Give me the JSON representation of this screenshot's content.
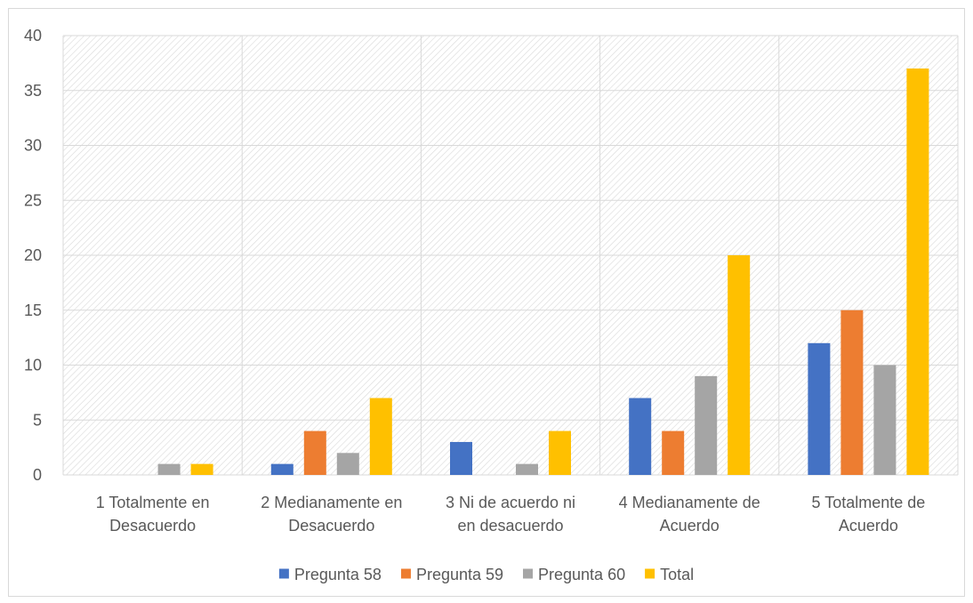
{
  "chart_data": {
    "type": "bar",
    "categories": [
      [
        "1 Totalmente en",
        "Desacuerdo"
      ],
      [
        "2 Medianamente en",
        "Desacuerdo"
      ],
      [
        "3 Ni de acuerdo ni",
        "en desacuerdo"
      ],
      [
        "4 Medianamente de",
        "Acuerdo"
      ],
      [
        "5 Totalmente de",
        "Acuerdo"
      ]
    ],
    "series": [
      {
        "name": "Pregunta 58",
        "color": "#4472c4",
        "values": [
          0,
          1,
          3,
          7,
          12
        ]
      },
      {
        "name": "Pregunta 59",
        "color": "#ed7d31",
        "values": [
          0,
          4,
          0,
          4,
          15
        ]
      },
      {
        "name": "Pregunta 60",
        "color": "#a5a5a5",
        "values": [
          1,
          2,
          1,
          9,
          10
        ]
      },
      {
        "name": "Total",
        "color": "#ffc000",
        "values": [
          1,
          7,
          4,
          20,
          37
        ]
      }
    ],
    "ylim": [
      0,
      40
    ],
    "yticks": [
      "0",
      "5",
      "10",
      "15",
      "20",
      "25",
      "30",
      "35",
      "40"
    ],
    "grid": true,
    "plot_background": "hatched",
    "legend": "bottom"
  }
}
